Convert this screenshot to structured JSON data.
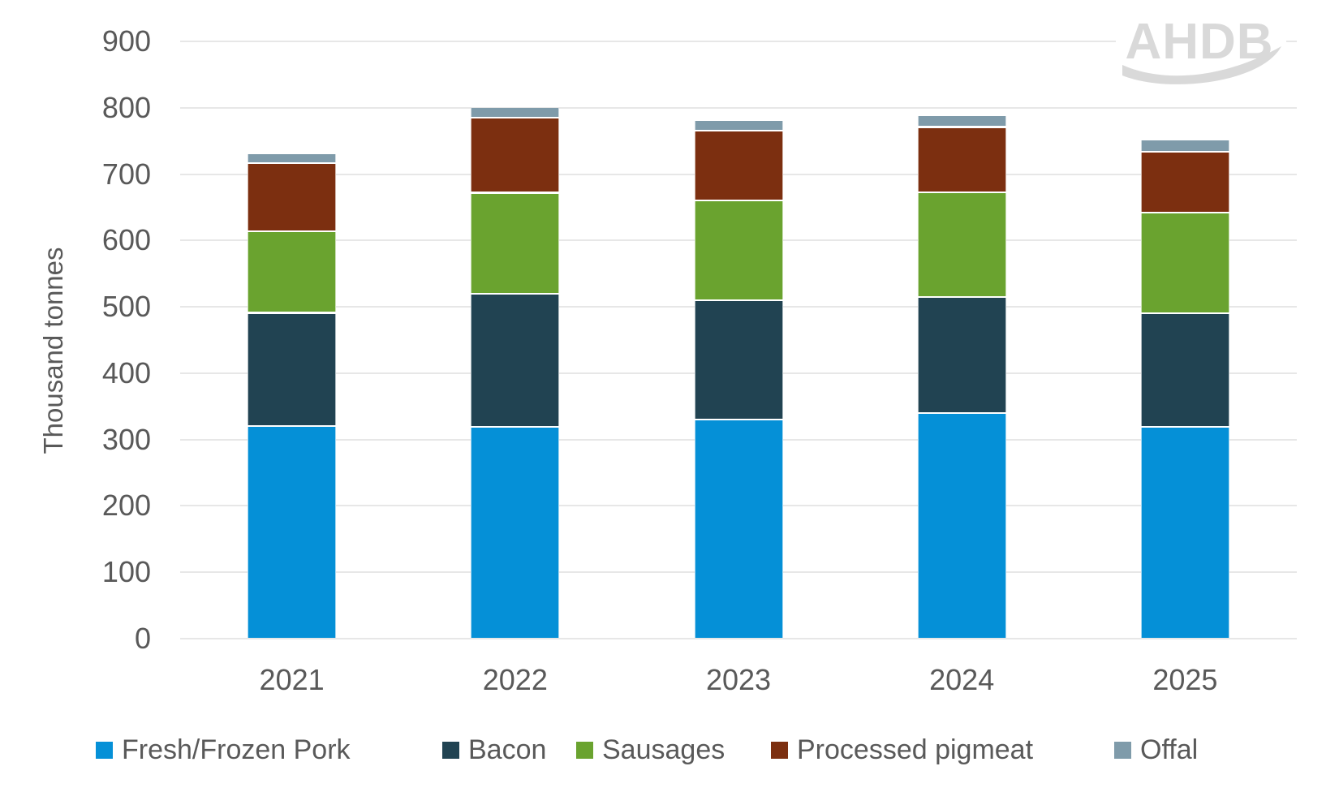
{
  "logo": {
    "text": "AHDB",
    "color": "#d9d9d9"
  },
  "axis": {
    "y_title": "Thousand tonnes",
    "text_color": "#595959",
    "gridline_color": "#e7e7e7"
  },
  "chart_data": {
    "type": "bar",
    "stacked": true,
    "title": "",
    "xlabel": "",
    "ylabel": "Thousand tonnes",
    "categories": [
      "2021",
      "2022",
      "2023",
      "2024",
      "2025"
    ],
    "series": [
      {
        "name": "Fresh/Frozen Pork",
        "color": "#0590d7",
        "values": [
          321,
          319,
          330,
          340,
          319
        ]
      },
      {
        "name": "Bacon",
        "color": "#214352",
        "values": [
          170,
          201,
          180,
          175,
          172
        ]
      },
      {
        "name": "Sausages",
        "color": "#6aa32f",
        "values": [
          123,
          152,
          150,
          158,
          151
        ]
      },
      {
        "name": "Processed pigmeat",
        "color": "#7c2f10",
        "values": [
          103,
          113,
          105,
          98,
          92
        ]
      },
      {
        "name": "Offal",
        "color": "#7f9baa",
        "values": [
          14,
          16,
          16,
          18,
          18
        ]
      }
    ],
    "totals": [
      731,
      801,
      781,
      789,
      752
    ],
    "ylim": [
      0,
      900
    ],
    "yticks": [
      0,
      100,
      200,
      300,
      400,
      500,
      600,
      700,
      800,
      900
    ],
    "grid": true,
    "legend_position": "bottom"
  }
}
